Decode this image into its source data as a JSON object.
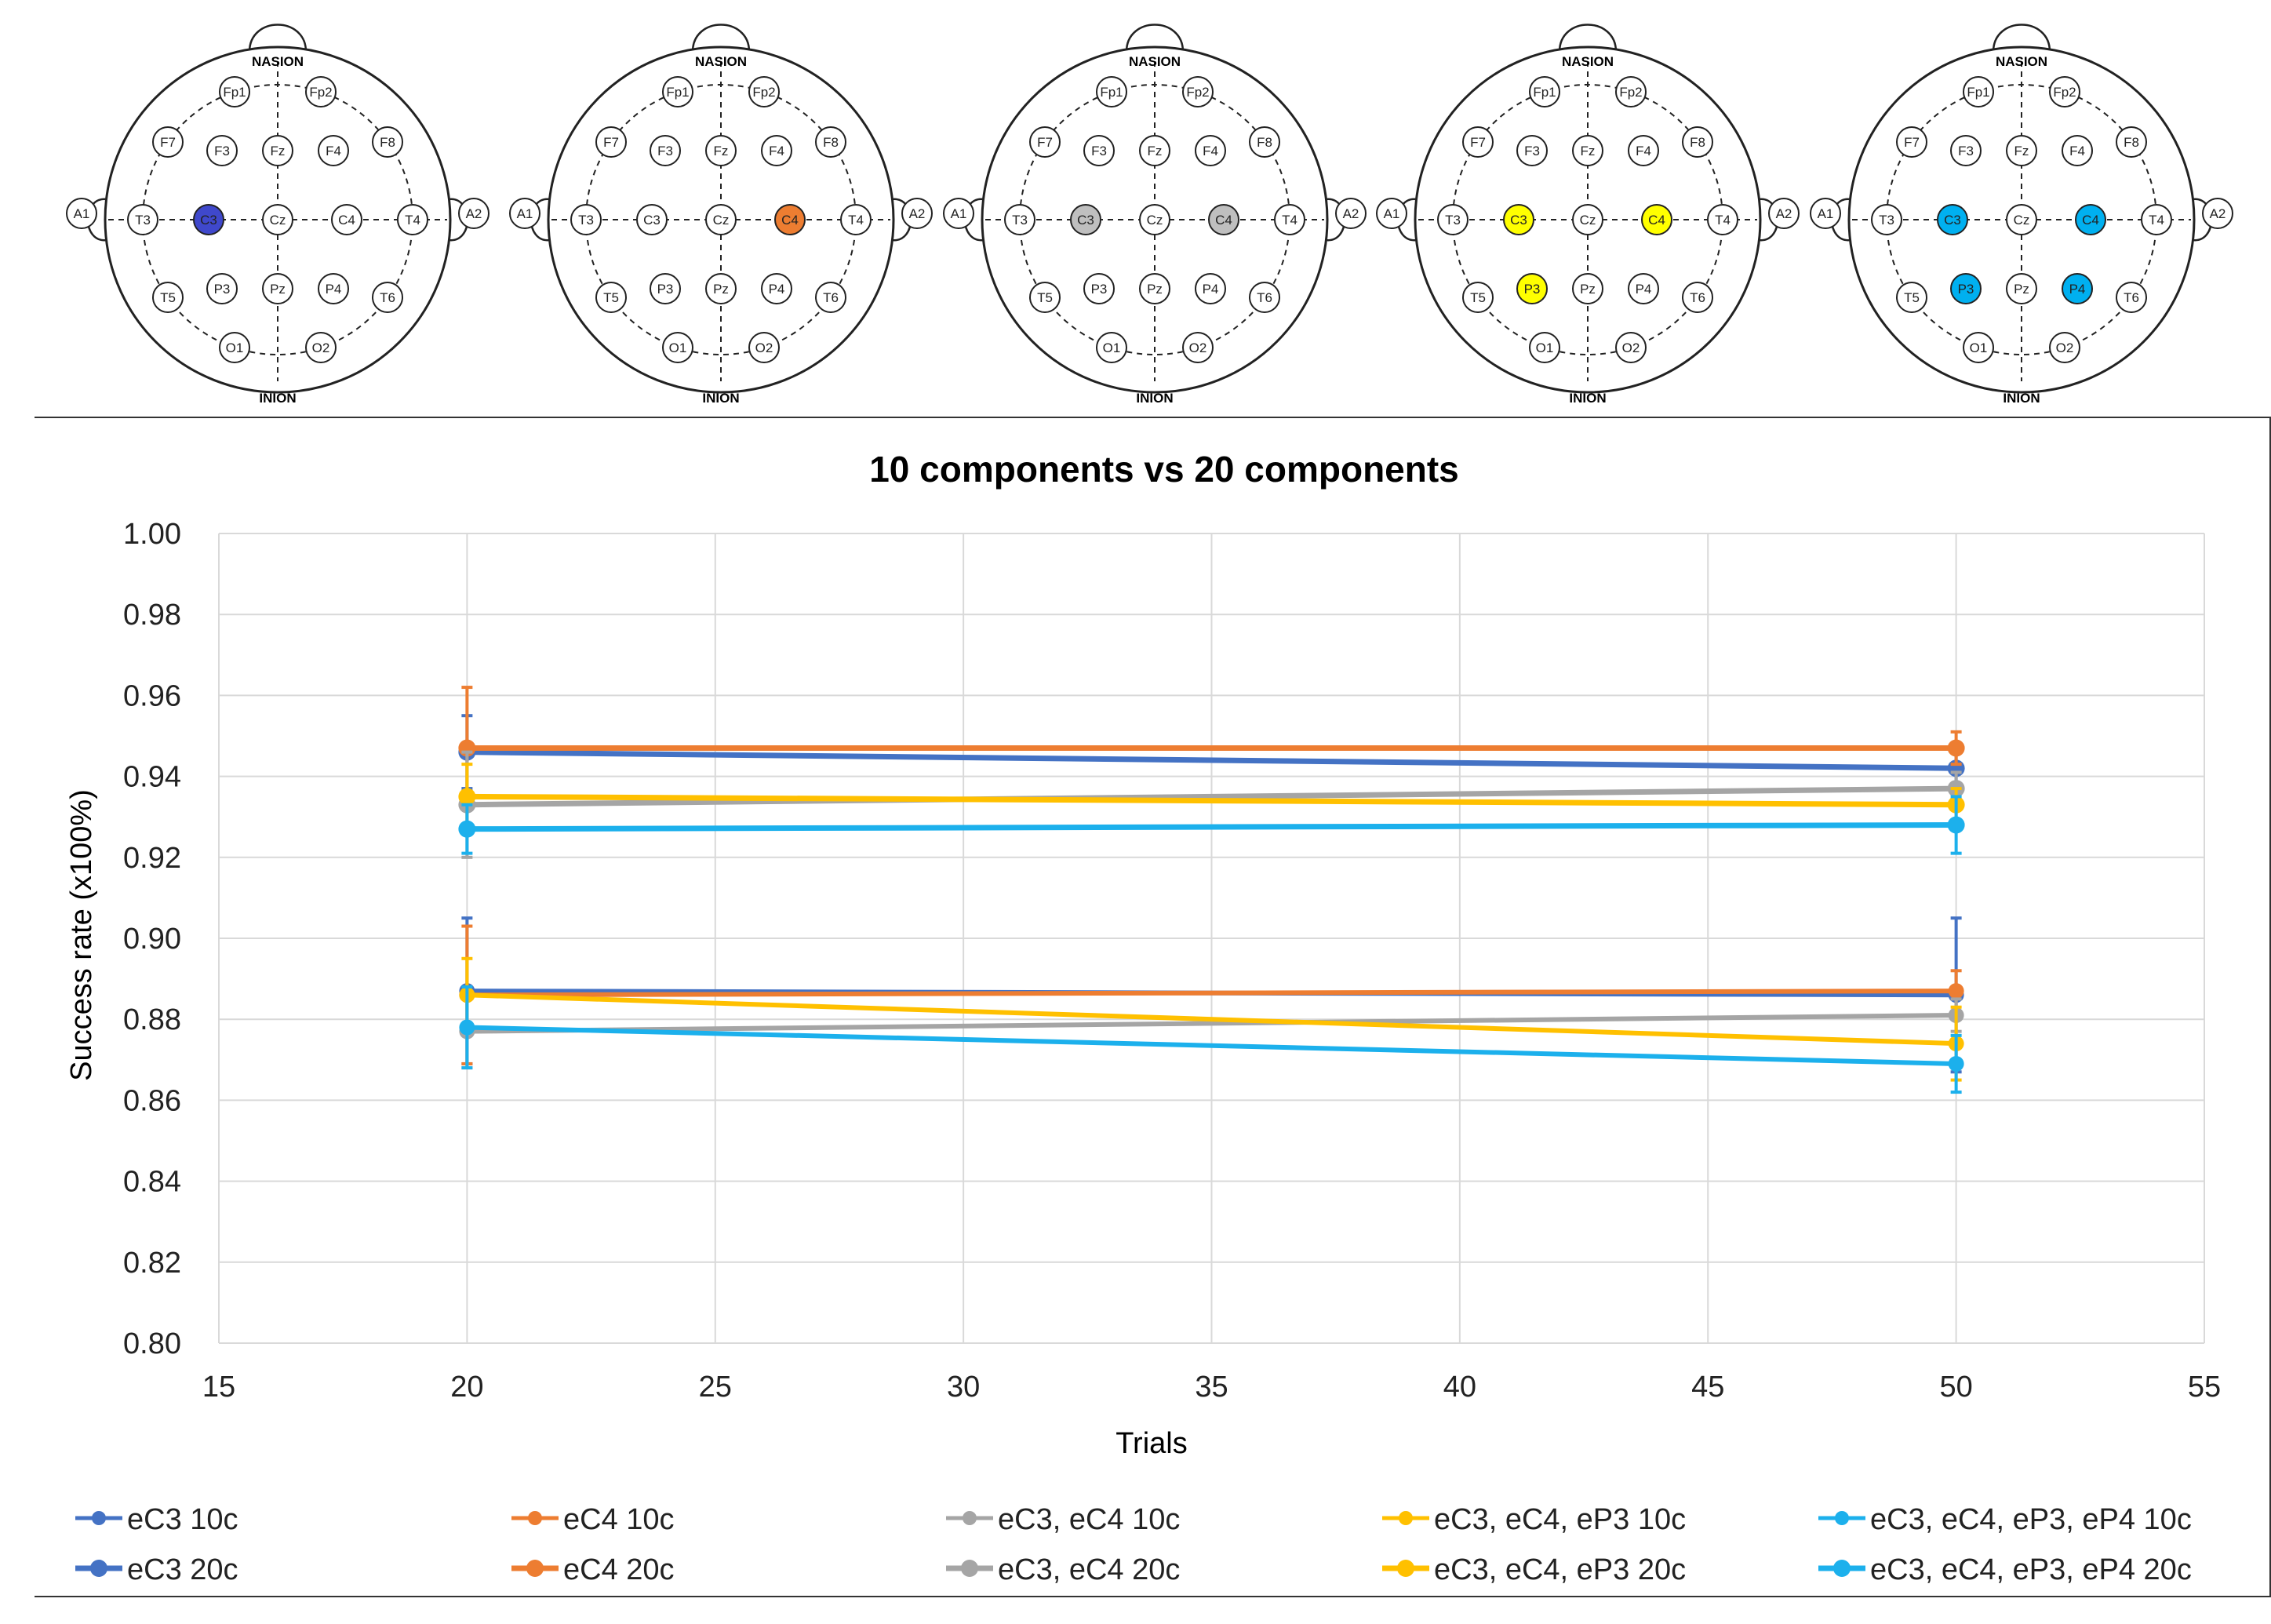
{
  "headmaps": [
    {
      "label_top": "NASION",
      "label_bottom": "INION",
      "highlight": [
        "C3"
      ],
      "color": "#3f48cc"
    },
    {
      "label_top": "NASION",
      "label_bottom": "INION",
      "highlight": [
        "C4"
      ],
      "color": "#ed7d31"
    },
    {
      "label_top": "NASION",
      "label_bottom": "INION",
      "highlight": [
        "C3",
        "C4"
      ],
      "color": "#bfbfbf"
    },
    {
      "label_top": "NASION",
      "label_bottom": "INION",
      "highlight": [
        "C3",
        "C4",
        "P3"
      ],
      "color": "#ffff00"
    },
    {
      "label_top": "NASION",
      "label_bottom": "INION",
      "highlight": [
        "C3",
        "C4",
        "P3",
        "P4"
      ],
      "color": "#00b0f0"
    }
  ],
  "electrodes": [
    "Fp1",
    "Fp2",
    "F7",
    "F3",
    "Fz",
    "F4",
    "F8",
    "A1",
    "T3",
    "C3",
    "Cz",
    "C4",
    "T4",
    "A2",
    "T5",
    "P3",
    "Pz",
    "P4",
    "T6",
    "O1",
    "O2"
  ],
  "chart_data": {
    "type": "line",
    "title": "10 components vs 20 components",
    "xlabel": "Trials",
    "ylabel": "Success rate (x100%)",
    "xlim": [
      15,
      55
    ],
    "ylim": [
      0.8,
      1.0
    ],
    "xticks": [
      "15",
      "20",
      "25",
      "30",
      "35",
      "40",
      "45",
      "50",
      "55"
    ],
    "yticks": [
      "0.80",
      "0.82",
      "0.84",
      "0.86",
      "0.88",
      "0.90",
      "0.92",
      "0.94",
      "0.96",
      "0.98",
      "1.00"
    ],
    "x": [
      20,
      50
    ],
    "series": [
      {
        "name": "eC3 10c",
        "color": "#4472c4",
        "values": [
          0.887,
          0.886
        ],
        "err": [
          0.018,
          0.019
        ],
        "thick": false
      },
      {
        "name": "eC4 10c",
        "color": "#ed7d31",
        "values": [
          0.886,
          0.887
        ],
        "err": [
          0.017,
          0.005
        ],
        "thick": false
      },
      {
        "name": "eC3, eC4 10c",
        "color": "#a5a5a5",
        "values": [
          0.877,
          0.881
        ],
        "err": [
          0.009,
          0.004
        ],
        "thick": false
      },
      {
        "name": "eC3, eC4, eP3 10c",
        "color": "#ffc000",
        "values": [
          0.886,
          0.874
        ],
        "err": [
          0.009,
          0.009
        ],
        "thick": false
      },
      {
        "name": "eC3, eC4, eP3, eP4 10c",
        "color": "#1cb0ec",
        "values": [
          0.878,
          0.869
        ],
        "err": [
          0.01,
          0.007
        ],
        "thick": false
      },
      {
        "name": "eC3 20c",
        "color": "#4472c4",
        "values": [
          0.946,
          0.942
        ],
        "err": [
          0.009,
          0.004
        ],
        "thick": true
      },
      {
        "name": "eC4 20c",
        "color": "#ed7d31",
        "values": [
          0.947,
          0.947
        ],
        "err": [
          0.015,
          0.004
        ],
        "thick": true
      },
      {
        "name": "eC3, eC4 20c",
        "color": "#a5a5a5",
        "values": [
          0.933,
          0.937
        ],
        "err": [
          0.013,
          0.004
        ],
        "thick": true
      },
      {
        "name": "eC3, eC4, eP3 20c",
        "color": "#ffc000",
        "values": [
          0.935,
          0.933
        ],
        "err": [
          0.008,
          0.004
        ],
        "thick": true
      },
      {
        "name": "eC3, eC4, eP3, eP4 20c",
        "color": "#1cb0ec",
        "values": [
          0.927,
          0.928
        ],
        "err": [
          0.006,
          0.007
        ],
        "thick": true
      }
    ],
    "legend_position": "bottom",
    "grid": true
  }
}
